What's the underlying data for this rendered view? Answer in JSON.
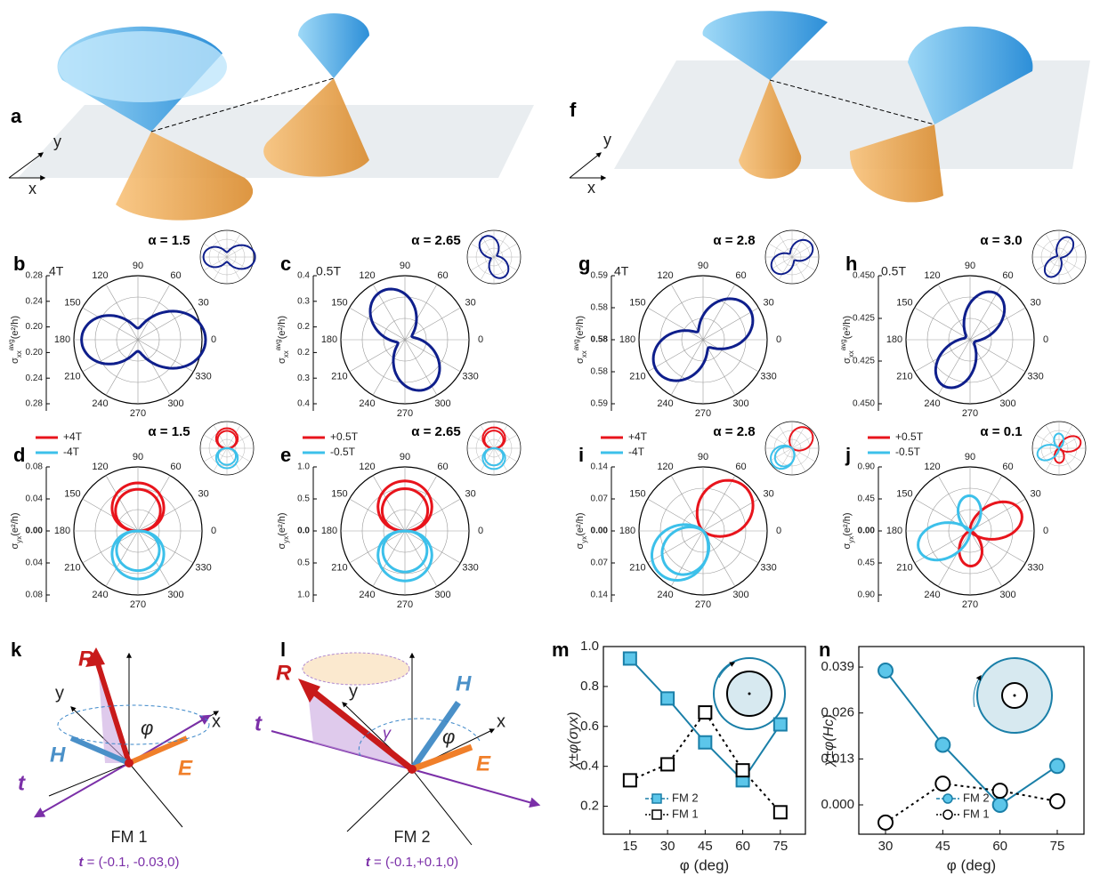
{
  "top": [
    {
      "label": "a",
      "axis_x": "x",
      "axis_y": "y"
    },
    {
      "label": "f",
      "axis_x": "x",
      "axis_y": "y"
    }
  ],
  "polar_angles": [
    90,
    60,
    30,
    0,
    330,
    300,
    270,
    240,
    210,
    180,
    150,
    120
  ],
  "polar": [
    {
      "label": "b",
      "alpha": "α = 1.5",
      "field": "4T",
      "radial_ticks": [
        "0.28",
        "0.24",
        "0.20",
        "0.20",
        "0.24",
        "0.28"
      ],
      "ylabel": {
        "sym": "σ",
        "sub": "xx",
        "sup": "avg",
        "unit": "(e²/h)"
      }
    },
    {
      "label": "c",
      "alpha": "α = 2.65",
      "field": "0.5T",
      "radial_ticks": [
        "0.4",
        "0.3",
        "0.2",
        "0.2",
        "0.3",
        "0.4"
      ],
      "ylabel": {
        "sym": "σ",
        "sub": "xx",
        "sup": "avg",
        "unit": "(e²/h)"
      }
    },
    {
      "label": "g",
      "alpha": "α = 2.8",
      "field": "4T",
      "radial_ticks": [
        "0.59",
        "0.58",
        "0.58",
        "0.58",
        "0.59"
      ],
      "ylabel": {
        "sym": "σ",
        "sub": "xx",
        "sup": "avg",
        "unit": "(e²/h)"
      }
    },
    {
      "label": "h",
      "alpha": "α = 3.0",
      "field": "0.5T",
      "radial_ticks": [
        "0.450",
        "0.425",
        "0.425",
        "0.450"
      ],
      "ylabel": {
        "sym": "σ",
        "sub": "xx",
        "sup": "avg",
        "unit": "(e²/h)"
      }
    },
    {
      "label": "d",
      "alpha": "α = 1.5",
      "legend": [
        "+4T",
        "-4T"
      ],
      "radial_ticks": [
        "0.08",
        "0.04",
        "0.00",
        "0.04",
        "0.08"
      ],
      "ylabel": {
        "sym": "σ",
        "sub": "yx",
        "unit": "(e²/h)"
      }
    },
    {
      "label": "e",
      "alpha": "α = 2.65",
      "legend": [
        "+0.5T",
        "-0.5T"
      ],
      "radial_ticks": [
        "1.0",
        "0.5",
        "0.0",
        "0.5",
        "1.0"
      ],
      "ylabel": {
        "sym": "σ",
        "sub": "yx",
        "unit": "(e²/h)"
      }
    },
    {
      "label": "i",
      "alpha": "α = 2.8",
      "legend": [
        "+4T",
        "-4T"
      ],
      "radial_ticks": [
        "0.14",
        "0.07",
        "0.00",
        "0.07",
        "0.14"
      ],
      "ylabel": {
        "sym": "σ",
        "sub": "yx",
        "unit": "(e²/h)"
      }
    },
    {
      "label": "j",
      "alpha": "α = 0.1",
      "legend": [
        "+0.5T",
        "-0.5T"
      ],
      "radial_ticks": [
        "0.90",
        "0.45",
        "0.00",
        "0.45",
        "0.90"
      ],
      "ylabel": {
        "sym": "σ",
        "sub": "yx",
        "unit": "(e²/h)"
      }
    }
  ],
  "diagrams": [
    {
      "label": "k",
      "R": "R",
      "H": "H",
      "t": "t",
      "E": "E",
      "x": "x",
      "y": "y",
      "angle": "φ",
      "title": "FM 1",
      "vector_sym": "t",
      "vector_text": " = (-0.1, -0.03,0)"
    },
    {
      "label": "l",
      "R": "R",
      "H": "H",
      "t": "t",
      "E": "E",
      "x": "x",
      "y": "y",
      "angle": "φ",
      "gamma": "γ",
      "title": "FM 2",
      "vector_sym": "t",
      "vector_text": " = (-0.1,+0.1,0)"
    }
  ],
  "chart_data": [
    {
      "type": "line",
      "label": "m",
      "xlabel": "φ (deg)",
      "ylabel": "χ±φ(σyx)",
      "marker": "square",
      "x": [
        15,
        30,
        45,
        60,
        75
      ],
      "xlim": [
        4.4,
        85
      ],
      "xticks": [
        15,
        30,
        45,
        60,
        75
      ],
      "ylim": [
        0.06,
        1.0
      ],
      "yticks": [
        0.2,
        0.4,
        0.6,
        0.8,
        {
          "value": 1,
          "label": "1.0"
        }
      ],
      "series": [
        {
          "name": "FM 2",
          "color": "#1a7fa8",
          "values": [
            0.94,
            0.74,
            0.52,
            0.33,
            0.61
          ]
        },
        {
          "name": "FM 1",
          "color": "#000000",
          "values": [
            0.33,
            0.41,
            0.67,
            0.38,
            0.17
          ]
        }
      ]
    },
    {
      "type": "line",
      "label": "n",
      "xlabel": "φ (deg)",
      "ylabel": "χ±φ(Hc)",
      "marker": "circle",
      "x": [
        30,
        45,
        60,
        75
      ],
      "xlim": [
        23,
        82
      ],
      "xticks": [
        30,
        45,
        60,
        75
      ],
      "ylim": [
        -0.0083,
        0.0448
      ],
      "yticks": [
        {
          "value": 0,
          "label": "0.000"
        },
        0.013,
        0.026,
        0.039
      ],
      "series": [
        {
          "name": "FM 2",
          "color": "#1a7fa8",
          "values": [
            0.038,
            0.017,
            0,
            0.011
          ]
        },
        {
          "name": "FM 1",
          "color": "#000000",
          "values": [
            -0.005,
            0.006,
            0.004,
            0.001
          ]
        }
      ]
    }
  ]
}
